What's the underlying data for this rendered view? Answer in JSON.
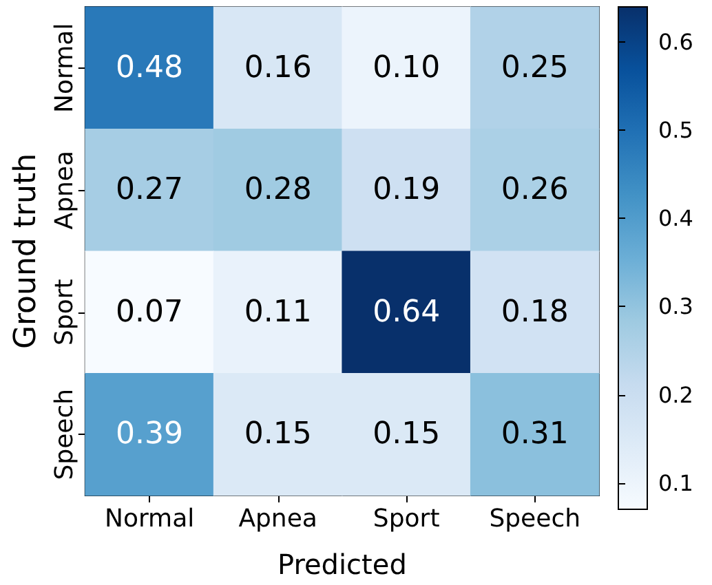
{
  "chart_data": {
    "type": "heatmap",
    "xlabel": "Predicted",
    "ylabel": "Ground truth",
    "categories": [
      "Normal",
      "Apnea",
      "Sport",
      "Speech"
    ],
    "y_categories": [
      "Normal",
      "Apnea",
      "Sport",
      "Speech"
    ],
    "cells": [
      [
        0.48,
        0.16,
        0.1,
        0.25
      ],
      [
        0.27,
        0.28,
        0.19,
        0.26
      ],
      [
        0.07,
        0.11,
        0.64,
        0.18
      ],
      [
        0.39,
        0.15,
        0.15,
        0.31
      ]
    ],
    "cell_labels": [
      [
        "0.48",
        "0.16",
        "0.10",
        "0.25"
      ],
      [
        "0.27",
        "0.28",
        "0.19",
        "0.26"
      ],
      [
        "0.07",
        "0.11",
        "0.64",
        "0.18"
      ],
      [
        "0.39",
        "0.15",
        "0.15",
        "0.31"
      ]
    ],
    "clim": [
      0.07,
      0.64
    ],
    "cticks": [
      0.1,
      0.2,
      0.3,
      0.4,
      0.5,
      0.6
    ]
  }
}
